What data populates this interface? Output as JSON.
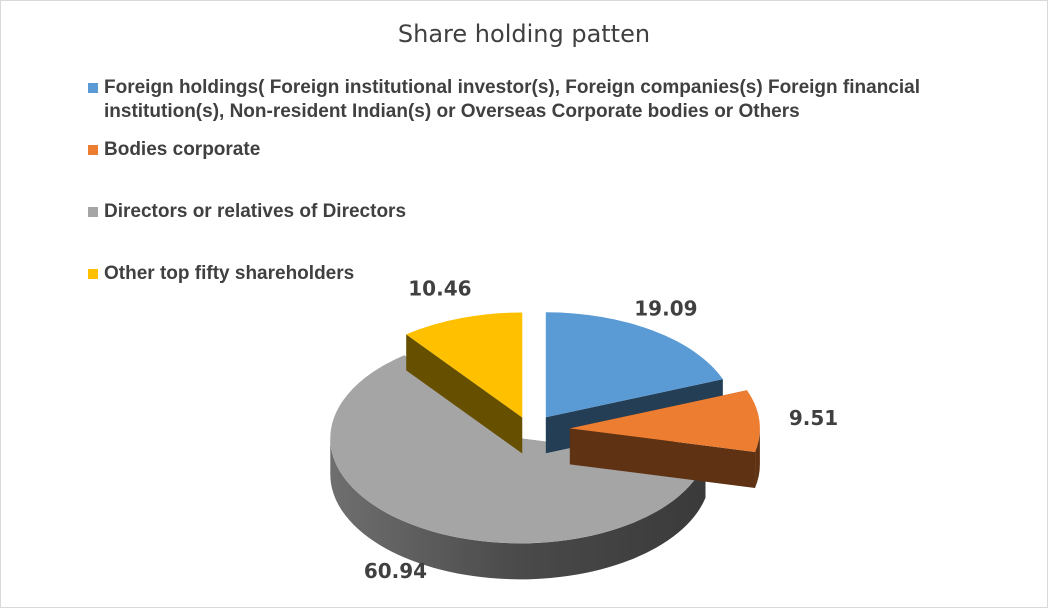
{
  "chart_data": {
    "type": "pie",
    "title": "Share holding patten",
    "legend_position": "top",
    "slices": [
      {
        "label": "Foreign holdings( Foreign institutional investor(s), Foreign companies(s) Foreign financial institution(s), Non-resident Indian(s) or Overseas Corporate bodies or Others",
        "value": 19.09,
        "value_label": "19.09",
        "color": "#5b9bd5",
        "side_color": "#243e56"
      },
      {
        "label": "Bodies corporate",
        "value": 9.51,
        "value_label": "9.51",
        "color": "#ed7d31",
        "side_color": "#5f3214"
      },
      {
        "label": "Directors or relatives of Directors",
        "value": 60.94,
        "value_label": "60.94",
        "color": "#a5a5a5",
        "side_color": "#5a5a5a"
      },
      {
        "label": "Other top fifty shareholders",
        "value": 10.46,
        "value_label": "10.46",
        "color": "#ffc000",
        "side_color": "#665000"
      }
    ]
  }
}
